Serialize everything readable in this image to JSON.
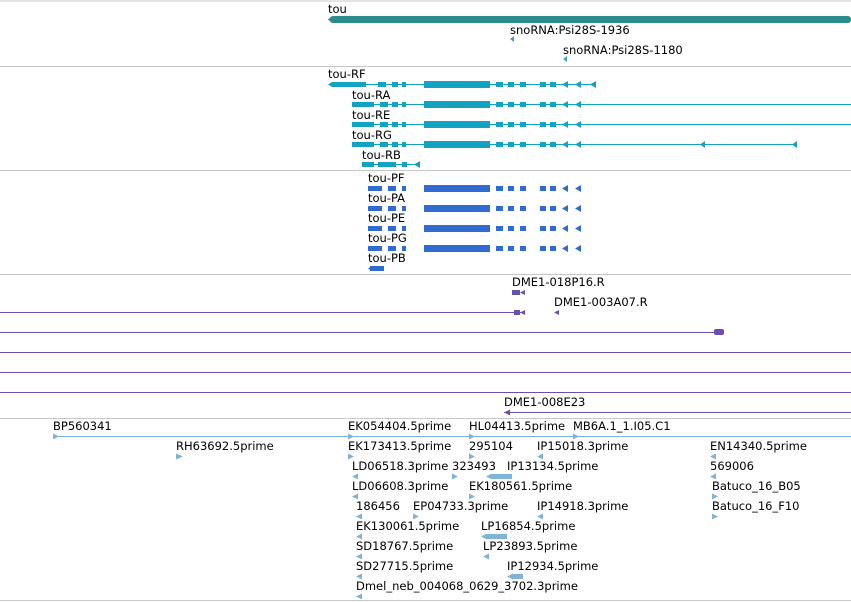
{
  "colors": {
    "gene": "#2e8b8b",
    "snorna": "#3aa6b5",
    "transcript": "#13a2c0",
    "protein": "#2f6bd0",
    "clone": "#6a4fb0",
    "est": "#7fb3d8",
    "divider": "#c8c8c8"
  },
  "gene": {
    "name": "tou"
  },
  "snornas": [
    "snoRNA:Psi28S-1936",
    "snoRNA:Psi28S-1180"
  ],
  "transcripts": [
    "tou-RF",
    "tou-RA",
    "tou-RE",
    "tou-RG",
    "tou-RB"
  ],
  "proteins": [
    "tou-PF",
    "tou-PA",
    "tou-PE",
    "tou-PG",
    "tou-PB"
  ],
  "clones": [
    "DME1-018P16.R",
    "DME1-003A07.R",
    "DME1-008E23"
  ],
  "ests": [
    "BP560341",
    "RH63692.5prime",
    "EK054404.5prime",
    "EK173413.5prime",
    "LD06518.3prime",
    "LD06608.3prime",
    "186456",
    "EP04733.3prime",
    "EK130061.5prime",
    "SD18767.5prime",
    "SD27715.5prime",
    "Dmel_neb_004068_0629_3702.3prime",
    "HL04413.5prime",
    "295104",
    "323493",
    "IP13134.5prime",
    "EK180561.5prime",
    "LP16854.5prime",
    "LP23893.5prime",
    "IP12934.5prime",
    "IP15018.3prime",
    "MB6A.1_1.I05.C1",
    "IP14918.3prime",
    "EN14340.5prime",
    "569006",
    "Batuco_16_B05",
    "Batuco_16_F10"
  ]
}
